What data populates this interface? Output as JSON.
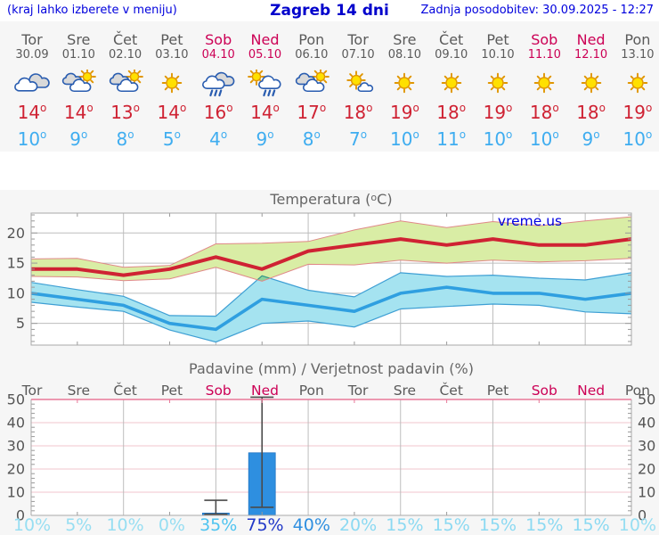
{
  "header": {
    "left": "(kraj lahko izberete v meniju)",
    "title": "Zagreb 14 dni",
    "right": "Zadnja posodobitev: 30.09.2025 - 12:27"
  },
  "watermark": "vreme.us",
  "colors": {
    "header_text": "#0000dd",
    "day_text": "#5a5a5a",
    "weekend_text": "#cc0055",
    "tmax_text": "#cf2233",
    "tmin_text": "#3fadf0",
    "strip_bg": "#f6f6f6",
    "plot_bg": "#ffffff",
    "grid": "#bdbdbd",
    "axis": "#a8a8a8",
    "tick_label": "#555555",
    "title_text": "#666666",
    "watermark_text": "#0000e0",
    "tmax_line": "#cf2233",
    "tmax_band": "#d9eda5",
    "tmax_band_edge": "#e08888",
    "tmin_line": "#2f9fe0",
    "tmin_band": "#a5e3f0",
    "tmin_band_edge": "#3e9fd4",
    "bar_fill": "#2e8fe0",
    "bar_edge": "#2276c4",
    "whisker": "#4a4a4a",
    "precip_hgrid": "#f0c4cc",
    "precip_top_border": "#e87898"
  },
  "forecast": {
    "days": [
      {
        "name": "Tor",
        "date": "30.09",
        "icon": "cloudy",
        "tmax": 14,
        "tmin": 10,
        "weekend": false
      },
      {
        "name": "Sre",
        "date": "01.10",
        "icon": "sun-cloud",
        "tmax": 14,
        "tmin": 9,
        "weekend": false
      },
      {
        "name": "Čet",
        "date": "02.10",
        "icon": "sun-cloud",
        "tmax": 13,
        "tmin": 8,
        "weekend": false
      },
      {
        "name": "Pet",
        "date": "03.10",
        "icon": "sunny",
        "tmax": 14,
        "tmin": 5,
        "weekend": false
      },
      {
        "name": "Sob",
        "date": "04.10",
        "icon": "rain",
        "tmax": 16,
        "tmin": 4,
        "weekend": true
      },
      {
        "name": "Ned",
        "date": "05.10",
        "icon": "sun-rain",
        "tmax": 14,
        "tmin": 9,
        "weekend": true
      },
      {
        "name": "Pon",
        "date": "06.10",
        "icon": "sun-cloud",
        "tmax": 17,
        "tmin": 8,
        "weekend": false
      },
      {
        "name": "Tor",
        "date": "07.10",
        "icon": "mostly-sunny",
        "tmax": 18,
        "tmin": 7,
        "weekend": false
      },
      {
        "name": "Sre",
        "date": "08.10",
        "icon": "sunny",
        "tmax": 19,
        "tmin": 10,
        "weekend": false
      },
      {
        "name": "Čet",
        "date": "09.10",
        "icon": "sunny",
        "tmax": 18,
        "tmin": 11,
        "weekend": false
      },
      {
        "name": "Pet",
        "date": "10.10",
        "icon": "sunny",
        "tmax": 19,
        "tmin": 10,
        "weekend": false
      },
      {
        "name": "Sob",
        "date": "11.10",
        "icon": "sunny",
        "tmax": 18,
        "tmin": 10,
        "weekend": true
      },
      {
        "name": "Ned",
        "date": "12.10",
        "icon": "sunny",
        "tmax": 18,
        "tmin": 9,
        "weekend": true
      },
      {
        "name": "Pon",
        "date": "13.10",
        "icon": "sunny",
        "tmax": 19,
        "tmin": 10,
        "weekend": false
      }
    ]
  },
  "chart_data": [
    {
      "type": "area",
      "title": "Temperatura (°C)",
      "x_labels": [
        "Tor 30.09",
        "Sre 01.10",
        "Čet 02.10",
        "Pet 03.10",
        "Sob 04.10",
        "Ned 05.10",
        "Pon 06.10",
        "Tor 07.10",
        "Sre 08.10",
        "Čet 09.10",
        "Pet 10.10",
        "Sob 11.10",
        "Ned 12.10",
        "Pon 13.10"
      ],
      "series": [
        {
          "name": "t_max",
          "values": [
            14,
            14,
            13,
            14,
            16,
            14,
            17,
            18,
            19,
            18,
            19,
            18,
            18,
            19
          ]
        },
        {
          "name": "t_max_range_upper",
          "values": [
            15.7,
            15.8,
            14.3,
            14.6,
            18.2,
            18.3,
            18.6,
            20.5,
            22.0,
            20.9,
            21.9,
            21.2,
            22.0,
            22.7
          ]
        },
        {
          "name": "t_max_range_lower",
          "values": [
            12.8,
            12.7,
            12.1,
            12.4,
            14.3,
            12.0,
            14.8,
            14.7,
            15.5,
            15.0,
            15.5,
            15.2,
            15.4,
            15.8
          ]
        },
        {
          "name": "t_min",
          "values": [
            10,
            9,
            8,
            5,
            4,
            9,
            8,
            7,
            10,
            11,
            10,
            10,
            9,
            10
          ]
        },
        {
          "name": "t_min_range_upper",
          "values": [
            11.8,
            10.6,
            9.5,
            6.3,
            6.2,
            12.9,
            10.5,
            9.4,
            13.4,
            12.8,
            13.0,
            12.5,
            12.2,
            13.4
          ]
        },
        {
          "name": "t_min_range_lower",
          "values": [
            8.5,
            7.7,
            7.0,
            3.9,
            1.9,
            5.0,
            5.4,
            4.4,
            7.4,
            7.8,
            8.2,
            8.0,
            6.9,
            6.6
          ]
        }
      ],
      "yticks": [
        5,
        10,
        15,
        20
      ],
      "ylim": [
        1.4,
        23.3
      ],
      "grid": true,
      "legend": "none"
    },
    {
      "type": "bar",
      "title": "Padavine (mm) / Verjetnost padavin (%)",
      "categories": [
        "Tor",
        "Sre",
        "Čet",
        "Pet",
        "Sob",
        "Ned",
        "Pon",
        "Tor",
        "Sre",
        "Čet",
        "Pet",
        "Sob",
        "Ned",
        "Pon"
      ],
      "weekend": [
        false,
        false,
        false,
        false,
        true,
        true,
        false,
        false,
        false,
        false,
        false,
        true,
        true,
        false
      ],
      "precip_mm": [
        0,
        0,
        0,
        0,
        1,
        27,
        0,
        0,
        0,
        0,
        0,
        0,
        0,
        0
      ],
      "whisker_low": [
        null,
        null,
        null,
        null,
        0.5,
        3.5,
        null,
        null,
        null,
        null,
        null,
        null,
        null,
        null
      ],
      "whisker_high": [
        null,
        null,
        null,
        null,
        6.5,
        51,
        null,
        null,
        null,
        null,
        null,
        null,
        null,
        null
      ],
      "probability_pct": [
        10,
        5,
        10,
        0,
        35,
        75,
        40,
        20,
        15,
        15,
        15,
        15,
        15,
        10
      ],
      "pct_colors": [
        "#97def2",
        "#97def2",
        "#97def2",
        "#97def2",
        "#4fc4f0",
        "#2038c8",
        "#2f8fe0",
        "#8bd9f2",
        "#8bd9f2",
        "#8bd9f2",
        "#8bd9f2",
        "#8bd9f2",
        "#8bd9f2",
        "#97def2"
      ],
      "yticks": [
        0,
        10,
        20,
        30,
        40,
        50
      ],
      "ylim": [
        0,
        50
      ],
      "grid": true
    }
  ]
}
